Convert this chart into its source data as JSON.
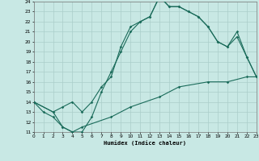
{
  "xlabel": "Humidex (Indice chaleur)",
  "bg_color": "#c8e8e4",
  "grid_color": "#aaceca",
  "line_color": "#1a6b5a",
  "xmin": 0,
  "xmax": 23,
  "ymin": 11,
  "ymax": 24,
  "line1_x": [
    0,
    1,
    2,
    3,
    4,
    5,
    6,
    7,
    8,
    9,
    10,
    11,
    12,
    13,
    14,
    15,
    16,
    17,
    18,
    19,
    20,
    21,
    22,
    23
  ],
  "line1_y": [
    14.0,
    13.0,
    12.5,
    11.5,
    11.0,
    11.0,
    12.5,
    15.0,
    17.0,
    19.0,
    21.0,
    22.0,
    22.5,
    24.5,
    23.5,
    23.5,
    23.0,
    22.5,
    21.5,
    20.0,
    19.5,
    21.0,
    18.5,
    16.5
  ],
  "line2_x": [
    0,
    2,
    3,
    4,
    5,
    6,
    7,
    8,
    9,
    10,
    11,
    12,
    13,
    14,
    15,
    16,
    17,
    18,
    19,
    20,
    21,
    22,
    23
  ],
  "line2_y": [
    14.0,
    13.0,
    13.5,
    14.0,
    13.0,
    14.0,
    15.5,
    16.5,
    19.5,
    21.5,
    22.0,
    22.5,
    24.5,
    23.5,
    23.5,
    23.0,
    22.5,
    21.5,
    20.0,
    19.5,
    20.5,
    18.5,
    16.5
  ],
  "line3_x": [
    0,
    2,
    3,
    4,
    5,
    8,
    10,
    13,
    15,
    18,
    20,
    22,
    23
  ],
  "line3_y": [
    14.0,
    13.0,
    11.5,
    11.0,
    11.5,
    12.5,
    13.5,
    14.5,
    15.5,
    16.0,
    16.0,
    16.5,
    16.5
  ]
}
